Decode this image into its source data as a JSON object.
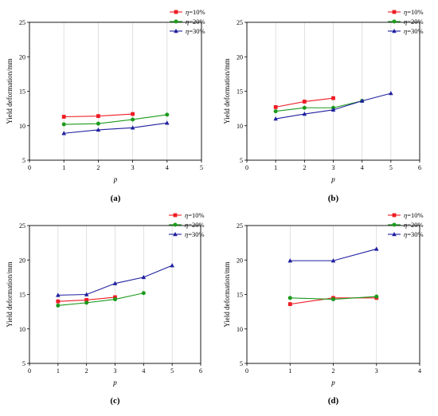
{
  "colors": {
    "eta10": "#ee1c24",
    "eta20": "#1b9a1b",
    "eta30": "#1f1f9f",
    "grid": "#d9d9d9",
    "axis": "#000000"
  },
  "chart_data": [
    {
      "type": "line",
      "panel_label": "(a)",
      "xlabel": "p",
      "ylabel": "Yield deformation/mm",
      "xlim": [
        0,
        5
      ],
      "ylim": [
        5,
        25
      ],
      "xticks": [
        0,
        1,
        2,
        3,
        4,
        5
      ],
      "yticks": [
        5,
        10,
        15,
        20,
        25
      ],
      "grid": "vertical",
      "legend": "top-right",
      "series": [
        {
          "name": "η=10%",
          "color": "#ee1c24",
          "marker": "square",
          "x": [
            1,
            2,
            3
          ],
          "values": [
            11.3,
            11.4,
            11.7
          ]
        },
        {
          "name": "η=20%",
          "color": "#1b9a1b",
          "marker": "circle",
          "x": [
            1,
            2,
            3,
            4
          ],
          "values": [
            10.2,
            10.3,
            10.9,
            11.6
          ]
        },
        {
          "name": "η=30%",
          "color": "#1f1f9f",
          "marker": "triangle",
          "x": [
            1,
            2,
            3,
            4
          ],
          "values": [
            8.9,
            9.4,
            9.7,
            10.4
          ]
        }
      ]
    },
    {
      "type": "line",
      "panel_label": "(b)",
      "xlabel": "p",
      "ylabel": "Yield deformation/mm",
      "xlim": [
        0,
        6
      ],
      "ylim": [
        5,
        25
      ],
      "xticks": [
        0,
        1,
        2,
        3,
        4,
        5,
        6
      ],
      "yticks": [
        5,
        10,
        15,
        20,
        25
      ],
      "grid": "vertical",
      "legend": "top-right",
      "series": [
        {
          "name": "η=10%",
          "color": "#ee1c24",
          "marker": "square",
          "x": [
            1,
            2,
            3
          ],
          "values": [
            12.7,
            13.5,
            14.0
          ]
        },
        {
          "name": "η=20%",
          "color": "#1b9a1b",
          "marker": "circle",
          "x": [
            1,
            2,
            3,
            4
          ],
          "values": [
            12.1,
            12.6,
            12.6,
            13.6
          ]
        },
        {
          "name": "η=30%",
          "color": "#1f1f9f",
          "marker": "triangle",
          "x": [
            1,
            2,
            3,
            4,
            5
          ],
          "values": [
            11.0,
            11.7,
            12.3,
            13.6,
            14.7
          ]
        }
      ]
    },
    {
      "type": "line",
      "panel_label": "(c)",
      "xlabel": "p",
      "ylabel": "Yield deformation/mm",
      "xlim": [
        0,
        6
      ],
      "ylim": [
        5,
        25
      ],
      "xticks": [
        0,
        1,
        2,
        3,
        4,
        5,
        6
      ],
      "yticks": [
        5,
        10,
        15,
        20,
        25
      ],
      "grid": "vertical",
      "legend": "top-right",
      "series": [
        {
          "name": "η=10%",
          "color": "#ee1c24",
          "marker": "square",
          "x": [
            1,
            2,
            3
          ],
          "values": [
            14.0,
            14.2,
            14.6
          ]
        },
        {
          "name": "η=20%",
          "color": "#1b9a1b",
          "marker": "circle",
          "x": [
            1,
            2,
            3,
            4
          ],
          "values": [
            13.4,
            13.8,
            14.3,
            15.2
          ]
        },
        {
          "name": "η=30%",
          "color": "#1f1f9f",
          "marker": "triangle",
          "x": [
            1,
            2,
            3,
            4,
            5
          ],
          "values": [
            14.9,
            15.0,
            16.6,
            17.5,
            19.2
          ]
        }
      ]
    },
    {
      "type": "line",
      "panel_label": "(d)",
      "xlabel": "p",
      "ylabel": "Yield deformation/mm",
      "xlim": [
        0,
        4
      ],
      "ylim": [
        5,
        25
      ],
      "xticks": [
        0,
        1,
        2,
        3,
        4
      ],
      "yticks": [
        5,
        10,
        15,
        20,
        25
      ],
      "grid": "vertical",
      "legend": "top-right",
      "series": [
        {
          "name": "η=10%",
          "color": "#ee1c24",
          "marker": "square",
          "x": [
            1,
            2,
            3
          ],
          "values": [
            13.6,
            14.5,
            14.5
          ]
        },
        {
          "name": "η=20%",
          "color": "#1b9a1b",
          "marker": "circle",
          "x": [
            1,
            2,
            3
          ],
          "values": [
            14.5,
            14.3,
            14.7
          ]
        },
        {
          "name": "η=30%",
          "color": "#1f1f9f",
          "marker": "triangle",
          "x": [
            1,
            2,
            3
          ],
          "values": [
            19.9,
            19.9,
            21.6
          ]
        }
      ]
    }
  ]
}
